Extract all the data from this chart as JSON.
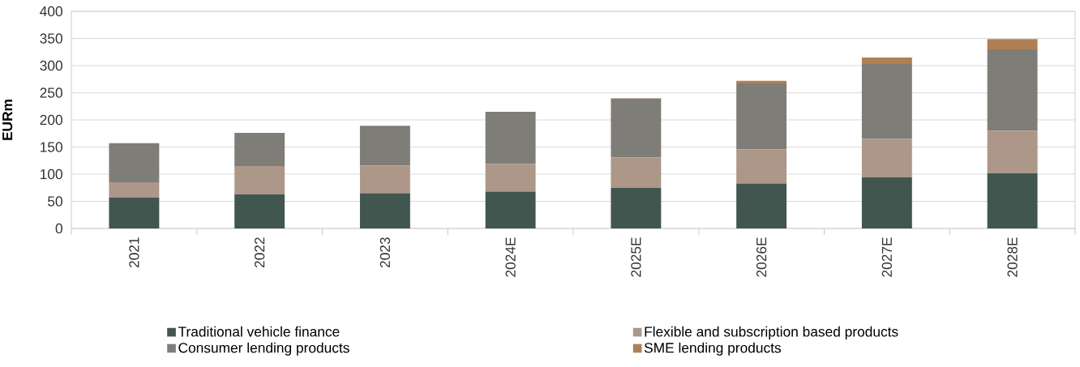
{
  "chart_data": {
    "type": "bar",
    "stacked": true,
    "ylabel": "EURm",
    "categories": [
      "2021",
      "2022",
      "2023",
      "2024E",
      "2025E",
      "2026E",
      "2027E",
      "2028E"
    ],
    "series": [
      {
        "name": "Traditional vehicle finance",
        "color": "#41564f",
        "values": [
          57,
          63,
          65,
          68,
          75,
          83,
          94,
          102
        ]
      },
      {
        "name": "Flexible and subscription based products",
        "color": "#ad9788",
        "values": [
          28,
          52,
          51,
          51,
          56,
          63,
          71,
          78
        ]
      },
      {
        "name": "Consumer lending products",
        "color": "#7f7d77",
        "values": [
          72,
          61,
          73,
          96,
          108,
          121,
          138,
          150
        ]
      },
      {
        "name": "SME lending products",
        "color": "#b07f54",
        "values": [
          0,
          0,
          0,
          0,
          1,
          5,
          12,
          19
        ]
      }
    ],
    "ylim": [
      0,
      400
    ],
    "yticks": [
      0,
      50,
      100,
      150,
      200,
      250,
      300,
      350,
      400
    ],
    "grid": "y",
    "legend": "bottom"
  }
}
